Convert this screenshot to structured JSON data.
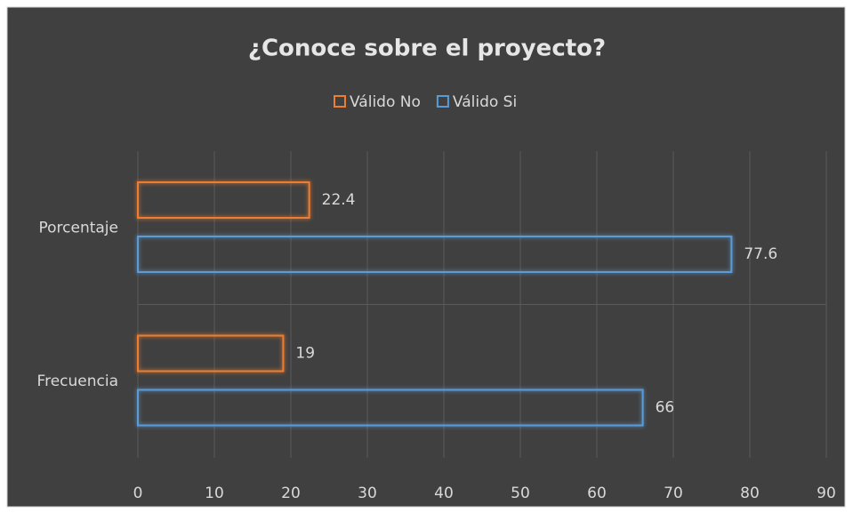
{
  "chart_data": {
    "type": "hbar",
    "title": "¿Conoce sobre el proyecto?",
    "categories": [
      "Porcentaje",
      "Frecuencia"
    ],
    "series": [
      {
        "name": "Válido No",
        "color": "#ed7d31",
        "values": [
          22.4,
          19
        ]
      },
      {
        "name": "Válido Si",
        "color": "#5b9bd5",
        "values": [
          77.6,
          66
        ]
      }
    ],
    "xlim": [
      0,
      90
    ],
    "xticks": [
      0,
      10,
      20,
      30,
      40,
      50,
      60,
      70,
      80,
      90
    ],
    "grid": true,
    "legend": "top"
  }
}
